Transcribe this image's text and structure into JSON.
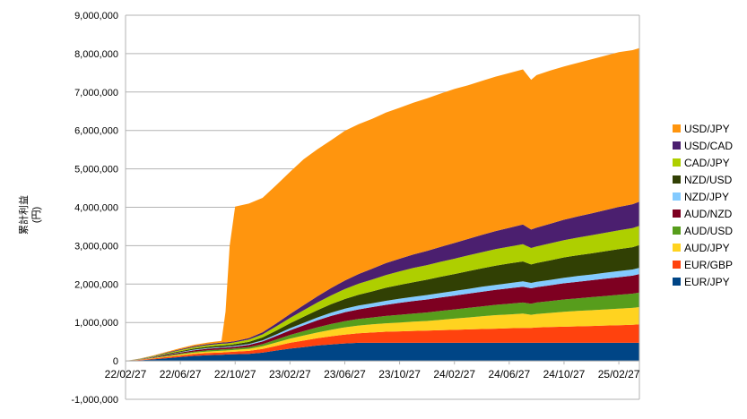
{
  "chart_data": {
    "type": "area",
    "stacked": true,
    "ylabel": "累計利益\n(円)",
    "ylim": [
      -1000000,
      9000000
    ],
    "yticks": [
      -1000000,
      0,
      1000000,
      2000000,
      3000000,
      4000000,
      5000000,
      6000000,
      7000000,
      8000000,
      9000000
    ],
    "ytick_labels": [
      "-1,000,000",
      "0",
      "1,000,000",
      "2,000,000",
      "3,000,000",
      "4,000,000",
      "5,000,000",
      "6,000,000",
      "7,000,000",
      "8,000,000",
      "9,000,000"
    ],
    "xtick_labels": [
      "22/02/27",
      "22/06/27",
      "22/10/27",
      "23/02/27",
      "23/06/27",
      "23/10/27",
      "24/02/27",
      "24/06/27",
      "24/10/27",
      "25/02/27"
    ],
    "x_month_index_range": [
      0,
      37.5
    ],
    "grid": "horizontal",
    "legend_position": "right",
    "x": [
      0,
      1,
      2,
      3,
      4,
      5,
      6,
      7,
      7.3,
      7.6,
      8,
      9,
      10,
      11,
      12,
      13,
      14,
      15,
      16,
      17,
      18,
      19,
      20,
      21,
      22,
      23,
      24,
      25,
      26,
      27,
      28,
      29,
      29.6,
      30,
      31,
      32,
      33,
      34,
      35,
      36,
      37,
      37.5
    ],
    "series": [
      {
        "name": "EUR/JPY",
        "color": "#004586",
        "values": [
          0,
          15000,
          40000,
          70000,
          100000,
          130000,
          150000,
          160000,
          165000,
          170000,
          175000,
          185000,
          215000,
          270000,
          320000,
          360000,
          400000,
          430000,
          455000,
          470000,
          470000,
          470000,
          470000,
          470000,
          470000,
          470000,
          470000,
          470000,
          470000,
          470000,
          470000,
          470000,
          470000,
          470000,
          470000,
          470000,
          470000,
          470000,
          470000,
          470000,
          470000,
          470000
        ]
      },
      {
        "name": "EUR/GBP",
        "color": "#ff420e",
        "values": [
          0,
          10000,
          20000,
          30000,
          40000,
          50000,
          55000,
          60000,
          60000,
          62000,
          65000,
          75000,
          95000,
          120000,
          150000,
          170000,
          190000,
          210000,
          230000,
          250000,
          270000,
          290000,
          300000,
          310000,
          320000,
          330000,
          340000,
          350000,
          360000,
          370000,
          380000,
          390000,
          390000,
          400000,
          410000,
          420000,
          430000,
          440000,
          450000,
          460000,
          470000,
          480000
        ]
      },
      {
        "name": "AUD/JPY",
        "color": "#ffd320",
        "values": [
          0,
          5000,
          12000,
          20000,
          28000,
          35000,
          40000,
          45000,
          45000,
          46000,
          48000,
          55000,
          70000,
          90000,
          110000,
          130000,
          150000,
          170000,
          190000,
          200000,
          210000,
          220000,
          230000,
          240000,
          250000,
          270000,
          290000,
          310000,
          330000,
          350000,
          360000,
          370000,
          340000,
          350000,
          370000,
          390000,
          400000,
          410000,
          420000,
          430000,
          440000,
          450000
        ]
      },
      {
        "name": "AUD/USD",
        "color": "#579d1c",
        "values": [
          0,
          5000,
          10000,
          16000,
          22000,
          28000,
          32000,
          35000,
          35000,
          36000,
          38000,
          45000,
          55000,
          75000,
          95000,
          115000,
          135000,
          150000,
          160000,
          170000,
          180000,
          190000,
          200000,
          210000,
          220000,
          230000,
          240000,
          250000,
          260000,
          270000,
          280000,
          290000,
          290000,
          300000,
          310000,
          320000,
          330000,
          340000,
          350000,
          360000,
          370000,
          380000
        ]
      },
      {
        "name": "AUD/NZD",
        "color": "#7e0021",
        "values": [
          0,
          5000,
          12000,
          20000,
          28000,
          35000,
          40000,
          42000,
          42000,
          43000,
          45000,
          55000,
          70000,
          95000,
          120000,
          150000,
          180000,
          210000,
          230000,
          250000,
          270000,
          290000,
          310000,
          330000,
          340000,
          350000,
          360000,
          370000,
          380000,
          390000,
          400000,
          410000,
          400000,
          400000,
          410000,
          420000,
          430000,
          440000,
          450000,
          460000,
          470000,
          480000
        ]
      },
      {
        "name": "NZD/JPY",
        "color": "#83caff",
        "values": [
          0,
          2000,
          5000,
          8000,
          12000,
          15000,
          18000,
          20000,
          20000,
          20000,
          22000,
          25000,
          30000,
          40000,
          55000,
          65000,
          75000,
          85000,
          95000,
          100000,
          100000,
          105000,
          110000,
          110000,
          115000,
          120000,
          120000,
          125000,
          130000,
          130000,
          135000,
          140000,
          140000,
          140000,
          140000,
          145000,
          150000,
          150000,
          155000,
          160000,
          160000,
          165000
        ]
      },
      {
        "name": "NZD/USD",
        "color": "#314004",
        "values": [
          0,
          4000,
          10000,
          18000,
          25000,
          32000,
          36000,
          40000,
          40000,
          41000,
          43000,
          55000,
          75000,
          100000,
          130000,
          160000,
          190000,
          220000,
          250000,
          280000,
          310000,
          340000,
          360000,
          380000,
          400000,
          420000,
          440000,
          460000,
          480000,
          500000,
          510000,
          520000,
          480000,
          490000,
          510000,
          530000,
          540000,
          550000,
          560000,
          570000,
          580000,
          590000
        ]
      },
      {
        "name": "CAD/JPY",
        "color": "#aecf00",
        "values": [
          0,
          5000,
          12000,
          20000,
          28000,
          35000,
          40000,
          45000,
          45000,
          46000,
          48000,
          60000,
          80000,
          110000,
          140000,
          170000,
          200000,
          230000,
          260000,
          290000,
          310000,
          330000,
          350000,
          370000,
          380000,
          390000,
          400000,
          410000,
          420000,
          430000,
          440000,
          450000,
          430000,
          430000,
          440000,
          450000,
          460000,
          470000,
          480000,
          490000,
          500000,
          500000
        ]
      },
      {
        "name": "USD/CAD",
        "color": "#4b1f6f",
        "values": [
          0,
          3000,
          8000,
          14000,
          20000,
          25000,
          28000,
          30000,
          30000,
          30000,
          32000,
          40000,
          55000,
          75000,
          100000,
          130000,
          160000,
          190000,
          220000,
          250000,
          280000,
          310000,
          330000,
          350000,
          370000,
          390000,
          410000,
          430000,
          450000,
          470000,
          490000,
          510000,
          480000,
          490000,
          510000,
          530000,
          550000,
          570000,
          590000,
          610000,
          620000,
          630000
        ]
      },
      {
        "name": "USD/JPY",
        "color": "#ff950e",
        "values": [
          0,
          5000,
          12000,
          20000,
          28000,
          35000,
          40000,
          45000,
          800000,
          2500000,
          3500000,
          3500000,
          3500000,
          3600000,
          3700000,
          3800000,
          3830000,
          3850000,
          3900000,
          3900000,
          3900000,
          3920000,
          3930000,
          3950000,
          3970000,
          3990000,
          4010000,
          4000000,
          4010000,
          4020000,
          4030000,
          4040000,
          3900000,
          3970000,
          3990000,
          3990000,
          4000000,
          4010000,
          4020000,
          4030000,
          4010000,
          4000000
        ]
      }
    ]
  }
}
